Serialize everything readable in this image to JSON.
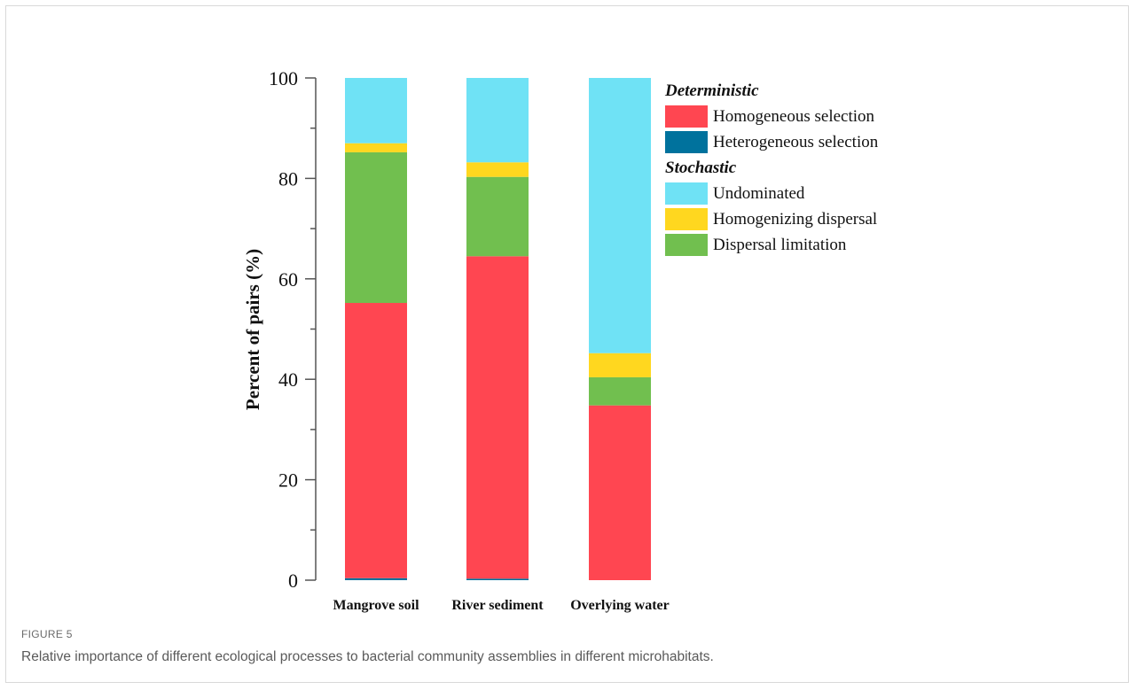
{
  "figure": {
    "label": "FIGURE 5",
    "caption": "Relative importance of different ecological processes to bacterial community assemblies in different microhabitats."
  },
  "legend_groups": [
    {
      "title": "Deterministic",
      "items": [
        "Homogeneous selection",
        "Heterogeneous selection"
      ]
    },
    {
      "title": "Stochastic",
      "items": [
        "Undominated",
        "Homogenizing dispersal",
        "Dispersal limitation"
      ]
    }
  ],
  "colors": {
    "Homogeneous selection": "#ff4651",
    "Heterogeneous selection": "#00729d",
    "Undominated": "#6fe2f5",
    "Homogenizing dispersal": "#ffd71f",
    "Dispersal limitation": "#71bf4f",
    "axis": "#555555"
  },
  "chart_data": {
    "type": "bar",
    "stacked": true,
    "categories": [
      "Mangrove soil",
      "River sediment",
      "Overlying water"
    ],
    "ylabel": "Percent of pairs (%)",
    "xlabel": "",
    "ylim": [
      0,
      100
    ],
    "yticks": [
      0,
      20,
      40,
      60,
      80,
      100
    ],
    "grid": false,
    "legend_position": "right",
    "series": [
      {
        "name": "Heterogeneous selection",
        "values": [
          0.4,
          0.3,
          0.0
        ]
      },
      {
        "name": "Homogeneous selection",
        "values": [
          54.8,
          64.2,
          34.8
        ]
      },
      {
        "name": "Dispersal limitation",
        "values": [
          30.0,
          15.8,
          5.6
        ]
      },
      {
        "name": "Homogenizing dispersal",
        "values": [
          1.8,
          2.9,
          4.8
        ]
      },
      {
        "name": "Undominated",
        "values": [
          13.0,
          16.8,
          54.8
        ]
      }
    ]
  }
}
